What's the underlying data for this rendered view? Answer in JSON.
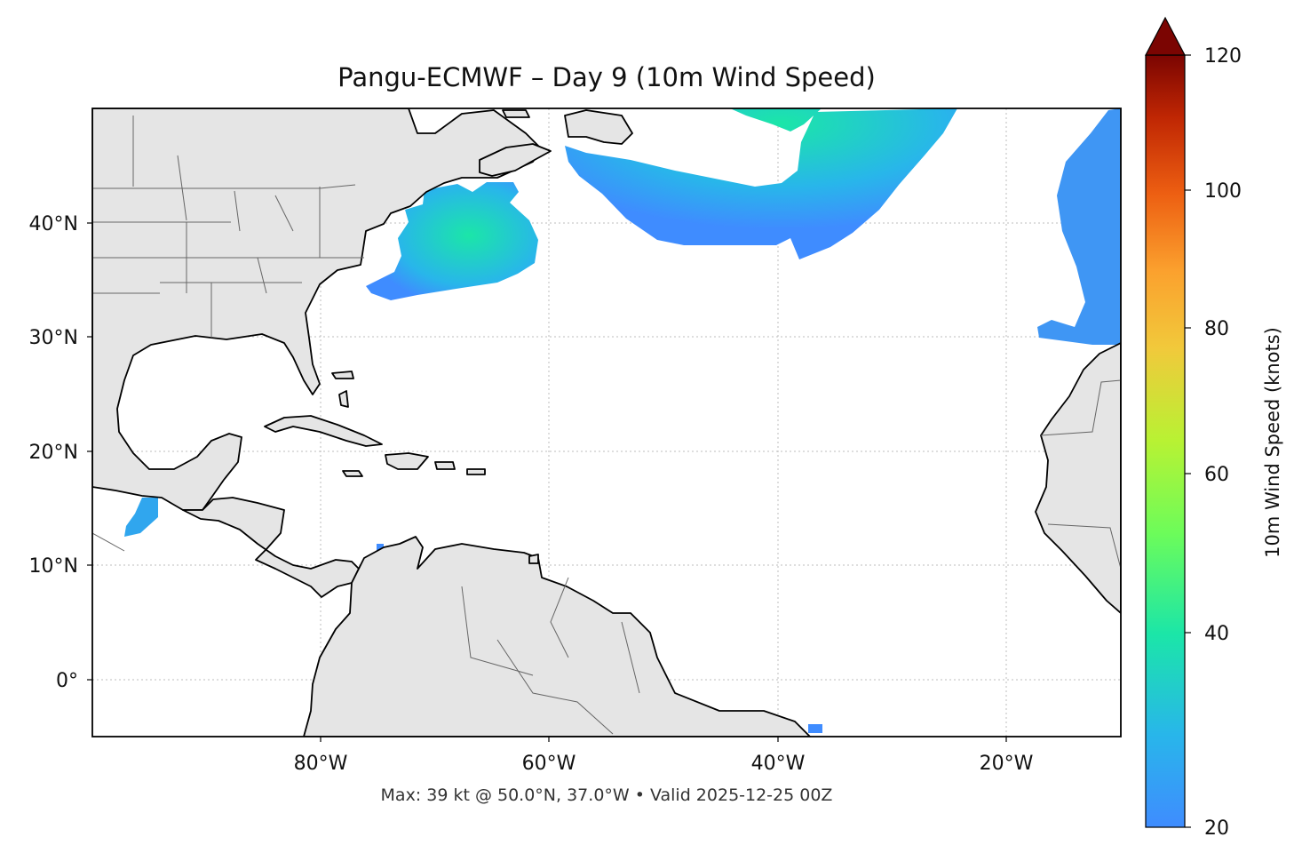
{
  "title": "Pangu-ECMWF – Day 9 (10m Wind Speed)",
  "footer": "Max: 39 kt @ 50.0°N, 37.0°W • Valid 2025-12-25 00Z",
  "map": {
    "lon_range": [
      -100,
      -10
    ],
    "lat_range": [
      -5,
      50
    ],
    "lat_ticks": [
      "40°N",
      "30°N",
      "20°N",
      "10°N",
      "0°"
    ],
    "lon_ticks": [
      "80°W",
      "60°W",
      "40°W",
      "20°W"
    ],
    "land_color": "#e5e5e5",
    "gridlines": true
  },
  "colorbar": {
    "label": "10m Wind Speed (knots)",
    "ticks": [
      "120",
      "100",
      "80",
      "60",
      "40",
      "20"
    ],
    "range": [
      20,
      120
    ],
    "extend": "max",
    "colormap": "turbo"
  },
  "wind_regions": [
    {
      "name": "us-east-coast",
      "speed_max": 36
    },
    {
      "name": "north-central-atlantic",
      "speed_max": 39
    },
    {
      "name": "eastern-atlantic",
      "speed_max": 26
    },
    {
      "name": "gulf-of-tehuantepec",
      "speed_max": 27
    }
  ]
}
